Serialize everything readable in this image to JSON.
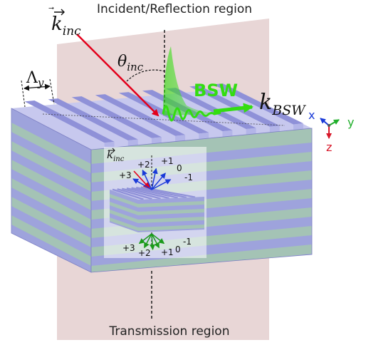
{
  "labels": {
    "top_region": "Incident/Reflection region",
    "bottom_region": "Transmission region",
    "k_inc": "k",
    "k_inc_sub": "inc",
    "theta": "θ",
    "theta_sub": "inc",
    "lambda_y": "Λ",
    "lambda_y_sub": "y",
    "bsw": "BSW",
    "k_bsw": "k",
    "k_bsw_sub": "BSW",
    "axis_x": "x",
    "axis_y": "y",
    "axis_z": "z",
    "inset_k": "k",
    "inset_k_sub": "inc",
    "orders_reflected": [
      "+3",
      "+2",
      "+1",
      "0",
      "-1"
    ],
    "orders_transmitted": [
      "+3",
      "+2",
      "+1",
      "0",
      "-1"
    ]
  },
  "colors": {
    "plane": "#e8d6d6",
    "top_face": "#c7c8ee",
    "ridge": "#8f91d8",
    "layer_blue": "#9ea3dc",
    "layer_green": "#a4c3b5",
    "incident_arrow": "#e3001b",
    "bsw": "#33dd11",
    "axis_x": "#1a3ad8",
    "axis_y": "#1fae2a",
    "axis_z": "#d8182a",
    "reflected_orders": "#1a3ad8",
    "transmitted_orders": "#1a9a1a"
  }
}
